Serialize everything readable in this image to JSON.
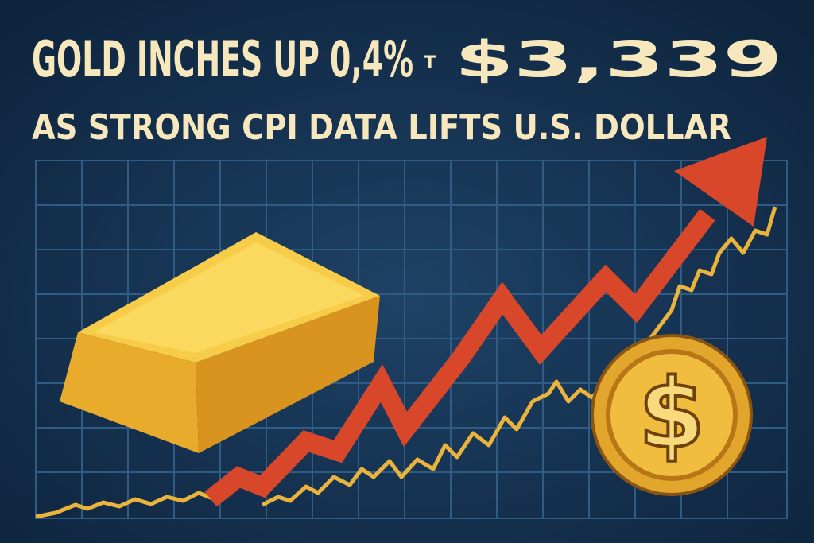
{
  "headline": {
    "line1": "GOLD INCHES UP 0,4%",
    "connector": "T",
    "price": "$3,339",
    "line2": "AS STRONG CPI DATA LIFTS U.S. DOLLAR"
  },
  "coin": {
    "symbol": "$"
  }
}
